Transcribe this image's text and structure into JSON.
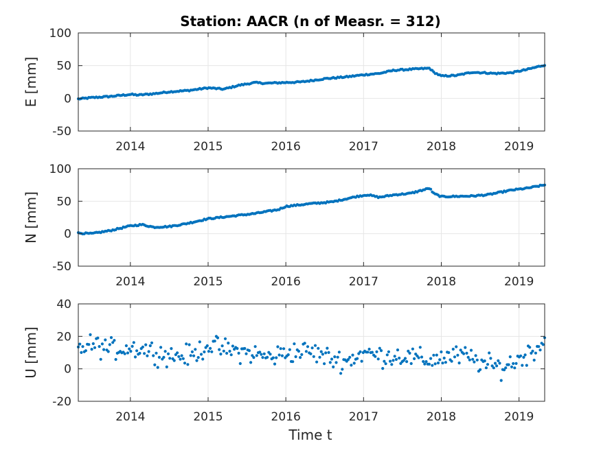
{
  "chart_data": {
    "type": "scatter",
    "title": "Station: AACR (n of Measr. = 312)",
    "xlabel": "Time t",
    "xlim": [
      2013.33,
      2019.33
    ],
    "xticks": [
      2014,
      2015,
      2016,
      2017,
      2018,
      2019
    ],
    "xtick_labels": [
      "2014",
      "2015",
      "2016",
      "2017",
      "2018",
      "2019"
    ],
    "marker_color": "#0072BD",
    "grid": true,
    "n_points": 312,
    "subplots": [
      {
        "ylabel": "E [mm]",
        "ylim": [
          -50,
          100
        ],
        "yticks": [
          -50,
          0,
          50,
          100
        ],
        "ytick_labels": [
          "-50",
          "0",
          "50",
          "100"
        ],
        "anchors": [
          [
            2013.33,
            -1
          ],
          [
            2013.5,
            1
          ],
          [
            2013.75,
            3
          ],
          [
            2014.0,
            6
          ],
          [
            2014.1,
            5
          ],
          [
            2014.3,
            7
          ],
          [
            2014.5,
            10
          ],
          [
            2014.75,
            12
          ],
          [
            2015.0,
            16
          ],
          [
            2015.2,
            14
          ],
          [
            2015.4,
            20
          ],
          [
            2015.6,
            24
          ],
          [
            2015.75,
            23
          ],
          [
            2015.95,
            24
          ],
          [
            2016.2,
            25
          ],
          [
            2016.5,
            30
          ],
          [
            2016.8,
            33
          ],
          [
            2017.0,
            36
          ],
          [
            2017.2,
            38
          ],
          [
            2017.4,
            43
          ],
          [
            2017.7,
            45
          ],
          [
            2017.85,
            46
          ],
          [
            2017.9,
            40
          ],
          [
            2018.0,
            34
          ],
          [
            2018.2,
            35
          ],
          [
            2018.4,
            40
          ],
          [
            2018.7,
            38
          ],
          [
            2018.9,
            39
          ],
          [
            2019.1,
            44
          ],
          [
            2019.33,
            51
          ]
        ]
      },
      {
        "ylabel": "N [mm]",
        "ylim": [
          -50,
          100
        ],
        "yticks": [
          -50,
          0,
          50,
          100
        ],
        "ytick_labels": [
          "-50",
          "0",
          "50",
          "100"
        ],
        "anchors": [
          [
            2013.33,
            1
          ],
          [
            2013.5,
            0
          ],
          [
            2013.75,
            5
          ],
          [
            2014.0,
            12
          ],
          [
            2014.15,
            14
          ],
          [
            2014.3,
            10
          ],
          [
            2014.5,
            11
          ],
          [
            2014.7,
            15
          ],
          [
            2015.0,
            23
          ],
          [
            2015.3,
            27
          ],
          [
            2015.6,
            31
          ],
          [
            2015.9,
            37
          ],
          [
            2016.0,
            42
          ],
          [
            2016.3,
            46
          ],
          [
            2016.6,
            49
          ],
          [
            2016.9,
            57
          ],
          [
            2017.05,
            60
          ],
          [
            2017.2,
            56
          ],
          [
            2017.4,
            60
          ],
          [
            2017.6,
            62
          ],
          [
            2017.85,
            70
          ],
          [
            2017.9,
            62
          ],
          [
            2018.0,
            57
          ],
          [
            2018.4,
            58
          ],
          [
            2018.6,
            60
          ],
          [
            2018.9,
            67
          ],
          [
            2019.1,
            70
          ],
          [
            2019.33,
            75
          ]
        ]
      },
      {
        "ylabel": "U [mm]",
        "ylim": [
          -20,
          40
        ],
        "yticks": [
          -20,
          0,
          20,
          40
        ],
        "ytick_labels": [
          "-20",
          "0",
          "20",
          "40"
        ],
        "anchors": [
          [
            2013.33,
            12
          ],
          [
            2013.5,
            15
          ],
          [
            2013.75,
            12
          ],
          [
            2014.0,
            13
          ],
          [
            2014.2,
            12
          ],
          [
            2014.5,
            8
          ],
          [
            2014.8,
            8
          ],
          [
            2015.0,
            15
          ],
          [
            2015.2,
            12
          ],
          [
            2015.5,
            10
          ],
          [
            2015.8,
            7
          ],
          [
            2016.0,
            10
          ],
          [
            2016.3,
            11
          ],
          [
            2016.6,
            6
          ],
          [
            2016.8,
            5
          ],
          [
            2017.0,
            10
          ],
          [
            2017.2,
            8
          ],
          [
            2017.5,
            8
          ],
          [
            2017.8,
            5
          ],
          [
            2018.0,
            7
          ],
          [
            2018.3,
            8
          ],
          [
            2018.6,
            2
          ],
          [
            2018.8,
            1
          ],
          [
            2019.0,
            6
          ],
          [
            2019.2,
            12
          ],
          [
            2019.33,
            18
          ]
        ],
        "noise": 4
      }
    ]
  }
}
